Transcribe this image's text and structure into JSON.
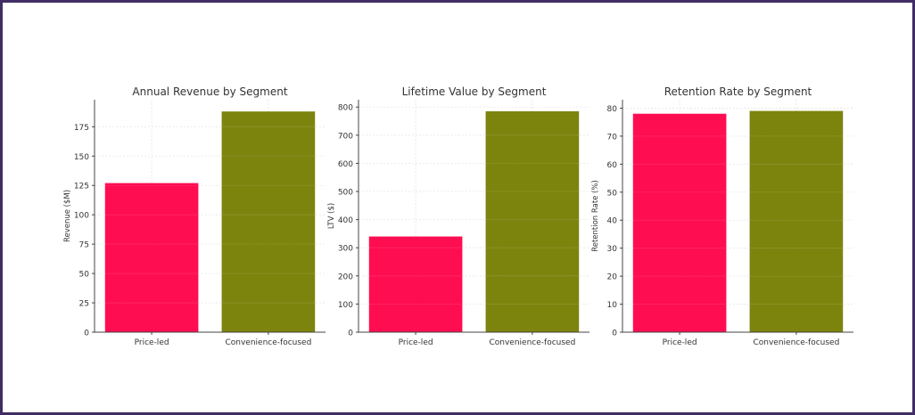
{
  "colors": {
    "price_led": "#ff0048",
    "convenience_focused": "#757d00",
    "frame": "#3f2d63"
  },
  "chart_data": [
    {
      "type": "bar",
      "title": "Annual Revenue by Segment",
      "xlabel": "",
      "ylabel": "Revenue ($M)",
      "categories": [
        "Price-led",
        "Convenience-focused"
      ],
      "values": [
        127,
        188
      ],
      "ylim": [
        0,
        198
      ],
      "yticks": [
        0,
        25,
        50,
        75,
        100,
        125,
        150,
        175
      ],
      "grid": true
    },
    {
      "type": "bar",
      "title": "Lifetime Value by Segment",
      "xlabel": "",
      "ylabel": "LTV ($)",
      "categories": [
        "Price-led",
        "Convenience-focused"
      ],
      "values": [
        340,
        785
      ],
      "ylim": [
        0,
        826
      ],
      "yticks": [
        0,
        100,
        200,
        300,
        400,
        500,
        600,
        700,
        800
      ],
      "grid": true
    },
    {
      "type": "bar",
      "title": "Retention Rate by Segment",
      "xlabel": "",
      "ylabel": "Retention Rate (%)",
      "categories": [
        "Price-led",
        "Convenience-focused"
      ],
      "values": [
        78,
        79
      ],
      "ylim": [
        0,
        83
      ],
      "yticks": [
        0,
        10,
        20,
        30,
        40,
        50,
        60,
        70,
        80
      ],
      "grid": true
    }
  ]
}
